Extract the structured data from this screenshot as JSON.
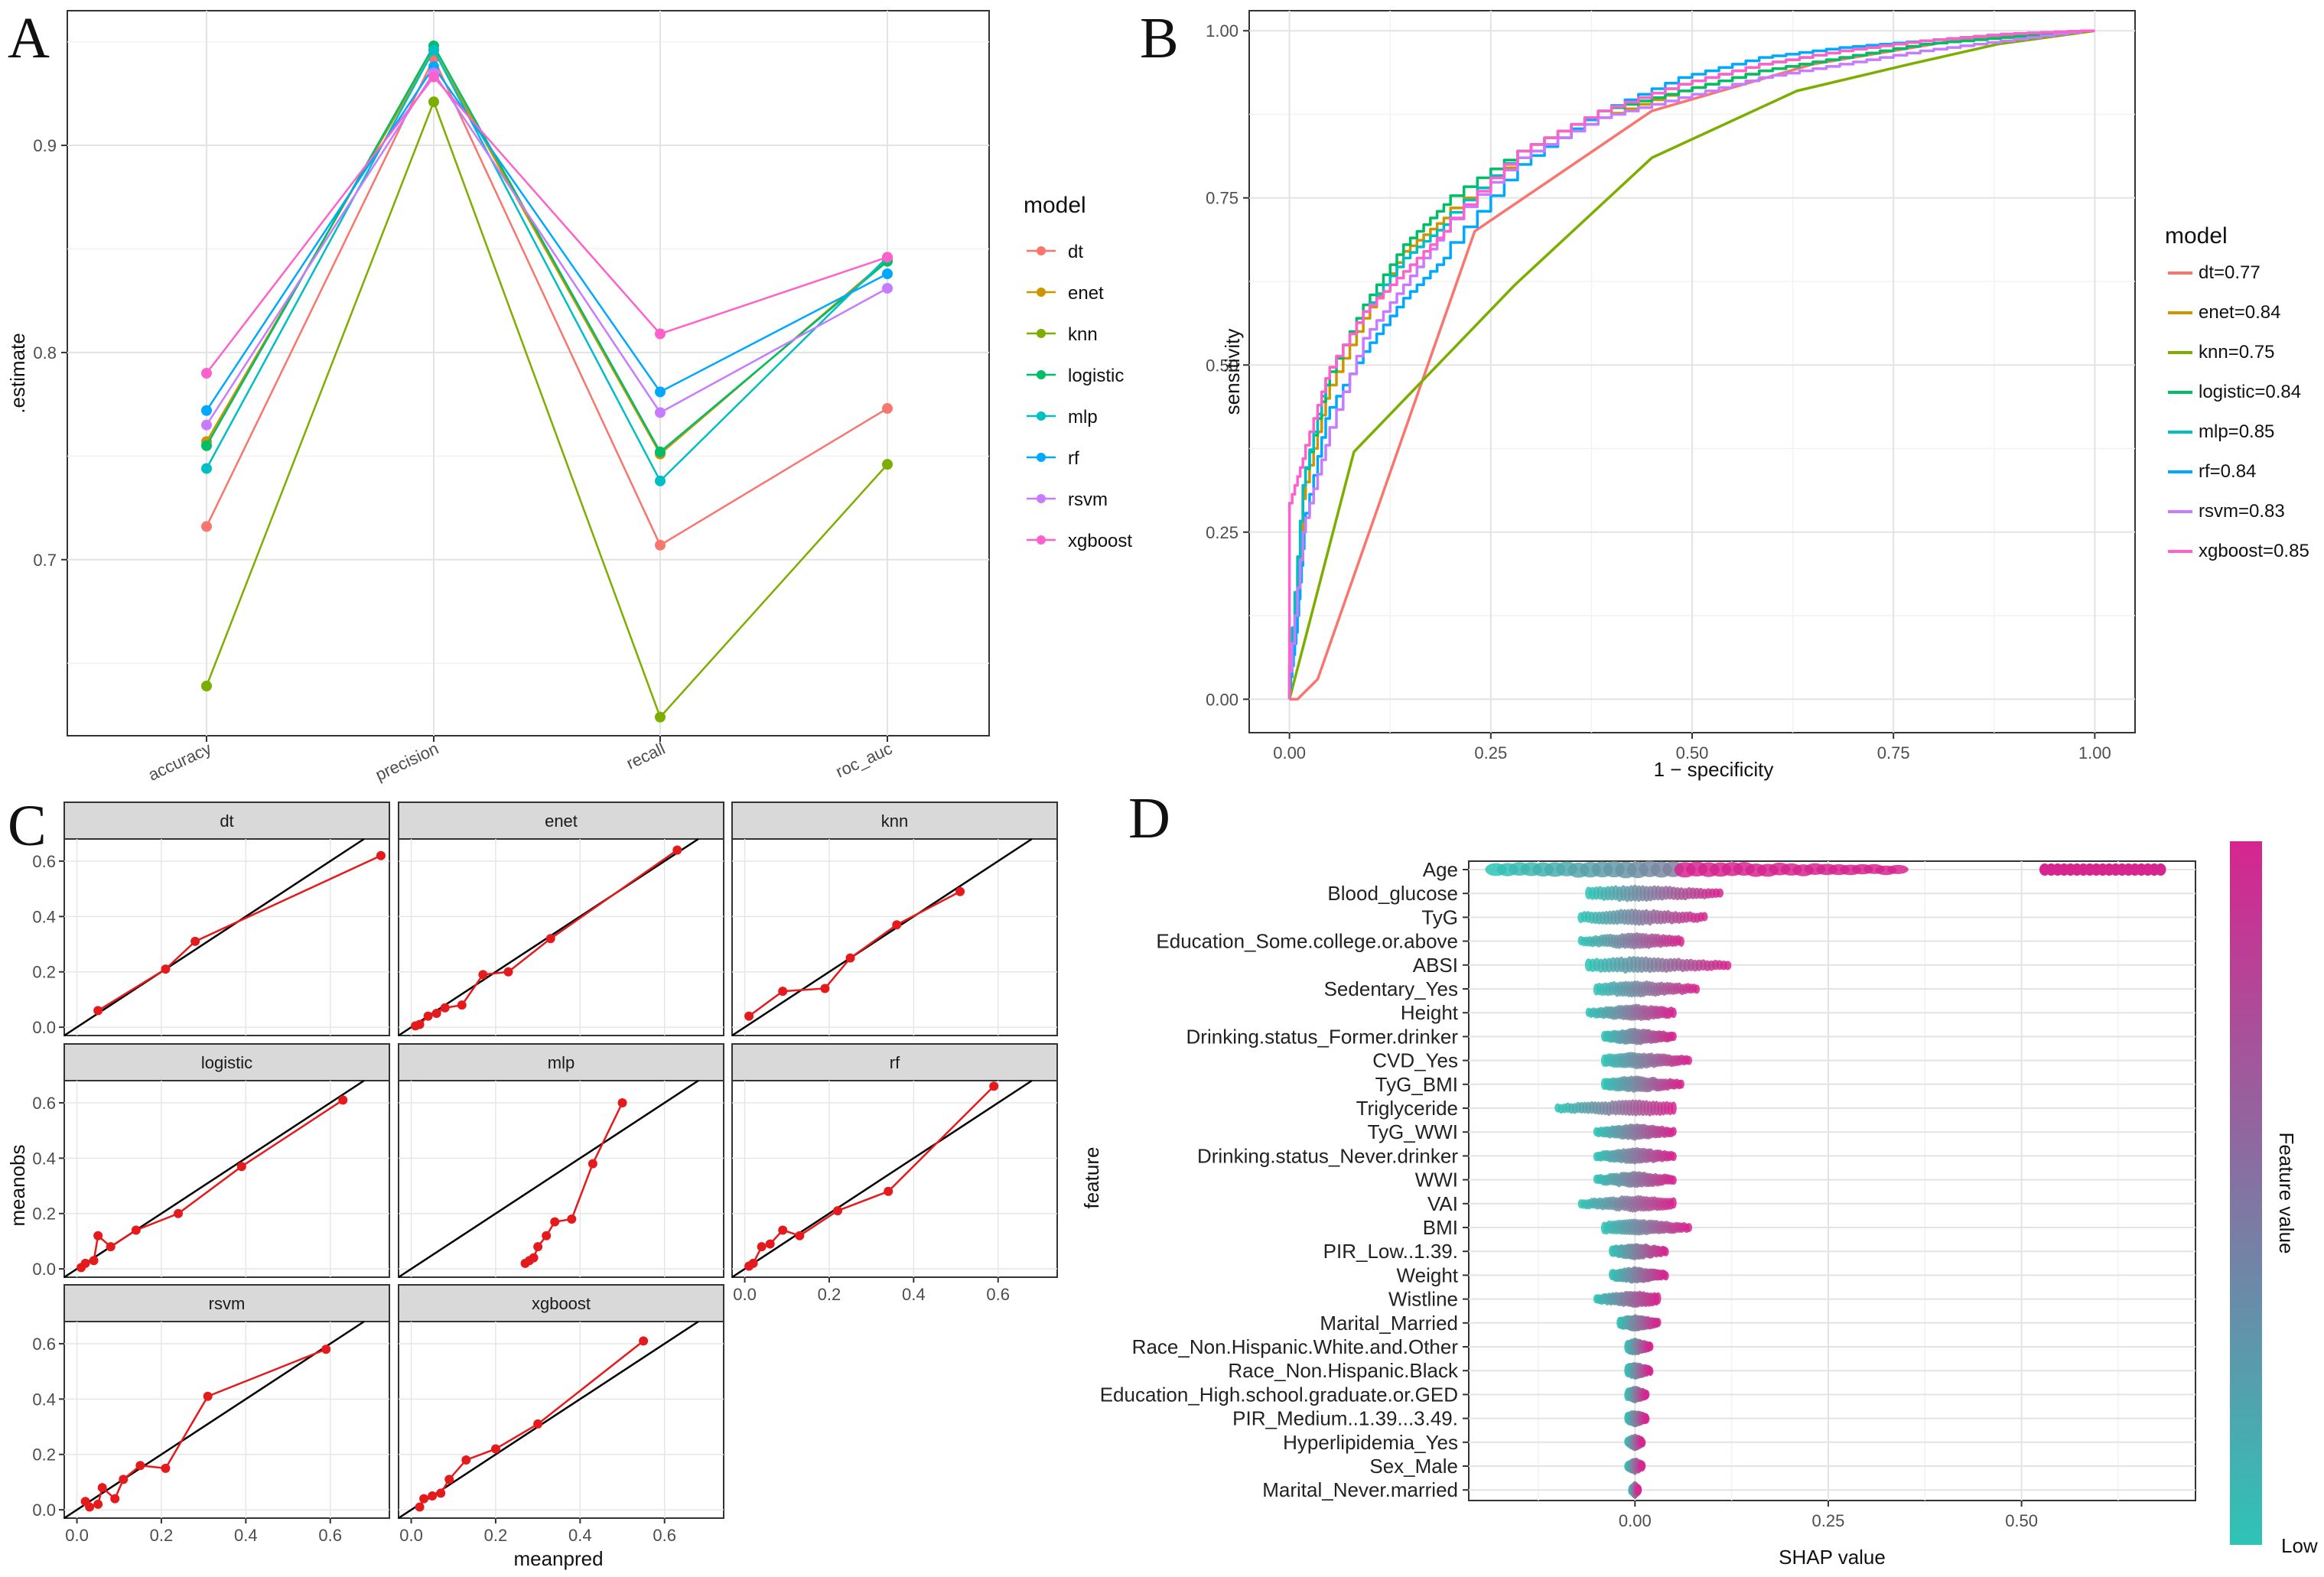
{
  "panel_labels": {
    "a": "A",
    "b": "B",
    "c": "C",
    "d": "D"
  },
  "chart_data": [
    {
      "type": "line",
      "panel": "A",
      "title": "",
      "xlabel": "",
      "ylabel": ".estimate",
      "categories": [
        "accuracy",
        "precision",
        "recall",
        "roc_auc"
      ],
      "y_ticks": [
        0.7,
        0.8,
        0.9
      ],
      "ylim": [
        0.615,
        0.965
      ],
      "legend_title": "model",
      "series": [
        {
          "name": "dt",
          "color": "#F8766D",
          "values": [
            0.716,
            0.942,
            0.707,
            0.773
          ]
        },
        {
          "name": "enet",
          "color": "#CD9600",
          "values": [
            0.757,
            0.946,
            0.751,
            0.845
          ]
        },
        {
          "name": "knn",
          "color": "#7CAE00",
          "values": [
            0.639,
            0.921,
            0.624,
            0.746
          ]
        },
        {
          "name": "logistic",
          "color": "#00BE67",
          "values": [
            0.755,
            0.948,
            0.752,
            0.844
          ]
        },
        {
          "name": "mlp",
          "color": "#00BFC4",
          "values": [
            0.744,
            0.946,
            0.738,
            0.846
          ]
        },
        {
          "name": "rf",
          "color": "#00A9FF",
          "values": [
            0.772,
            0.938,
            0.781,
            0.838
          ]
        },
        {
          "name": "rsvm",
          "color": "#C77CFF",
          "values": [
            0.765,
            0.935,
            0.771,
            0.831
          ]
        },
        {
          "name": "xgboost",
          "color": "#FF61CC",
          "values": [
            0.79,
            0.933,
            0.809,
            0.846
          ]
        }
      ]
    },
    {
      "type": "line",
      "panel": "B",
      "title": "",
      "xlabel": "1 − specificity",
      "ylabel": "sensitivity",
      "xlim": [
        -0.05,
        1.05
      ],
      "ylim": [
        -0.05,
        1.03
      ],
      "x_ticks": [
        "0.00",
        "0.25",
        "0.50",
        "0.75",
        "1.00"
      ],
      "y_ticks": [
        "0.00",
        "0.25",
        "0.50",
        "0.75",
        "1.00"
      ],
      "legend_title": "model",
      "series": [
        {
          "name": "dt=0.77",
          "color": "#F8766D",
          "x": [
            0,
            0.01,
            0.035,
            0.23,
            0.45,
            0.65,
            0.85,
            1.0
          ],
          "y": [
            0,
            0,
            0.03,
            0.7,
            0.88,
            0.95,
            0.99,
            1.0
          ]
        },
        {
          "name": "enet=0.84",
          "color": "#CD9600",
          "x": [
            0,
            0.02,
            0.05,
            0.1,
            0.15,
            0.2,
            0.3,
            0.4,
            0.5,
            0.6,
            0.7,
            0.8,
            0.9,
            1.0
          ],
          "y": [
            0,
            0.3,
            0.45,
            0.57,
            0.67,
            0.72,
            0.81,
            0.87,
            0.91,
            0.94,
            0.96,
            0.98,
            0.99,
            1.0
          ]
        },
        {
          "name": "knn=0.75",
          "color": "#7CAE00",
          "x": [
            0,
            0.08,
            0.28,
            0.45,
            0.63,
            0.77,
            0.88,
            1.0
          ],
          "y": [
            0,
            0.37,
            0.62,
            0.81,
            0.91,
            0.95,
            0.98,
            1.0
          ]
        },
        {
          "name": "logistic=0.84",
          "color": "#00BE67",
          "x": [
            0,
            0.02,
            0.05,
            0.1,
            0.15,
            0.2,
            0.3,
            0.4,
            0.5,
            0.6,
            0.7,
            0.8,
            0.9,
            1.0
          ],
          "y": [
            0,
            0.32,
            0.47,
            0.59,
            0.68,
            0.74,
            0.82,
            0.88,
            0.91,
            0.94,
            0.96,
            0.98,
            0.99,
            1.0
          ]
        },
        {
          "name": "mlp=0.85",
          "color": "#00BFC4",
          "x": [
            0,
            0.02,
            0.05,
            0.1,
            0.15,
            0.2,
            0.3,
            0.4,
            0.5,
            0.6,
            0.7,
            0.8,
            0.9,
            1.0
          ],
          "y": [
            0,
            0.32,
            0.48,
            0.58,
            0.66,
            0.71,
            0.82,
            0.88,
            0.92,
            0.95,
            0.97,
            0.985,
            0.995,
            1.0
          ]
        },
        {
          "name": "rf=0.84",
          "color": "#00A9FF",
          "x": [
            0,
            0.01,
            0.02,
            0.05,
            0.1,
            0.15,
            0.2,
            0.3,
            0.4,
            0.5,
            0.6,
            0.7,
            0.8,
            0.9,
            1.0
          ],
          "y": [
            0,
            0.1,
            0.25,
            0.42,
            0.52,
            0.6,
            0.66,
            0.8,
            0.88,
            0.93,
            0.96,
            0.975,
            0.985,
            0.995,
            1.0
          ]
        },
        {
          "name": "rsvm=0.83",
          "color": "#C77CFF",
          "x": [
            0,
            0.02,
            0.05,
            0.1,
            0.15,
            0.2,
            0.3,
            0.4,
            0.5,
            0.6,
            0.7,
            0.8,
            0.9,
            1.0
          ],
          "y": [
            0,
            0.25,
            0.38,
            0.54,
            0.62,
            0.7,
            0.81,
            0.87,
            0.9,
            0.93,
            0.95,
            0.97,
            0.985,
            1.0
          ]
        },
        {
          "name": "xgboost=0.85",
          "color": "#FF61CC",
          "x": [
            0,
            0,
            0.02,
            0.05,
            0.1,
            0.15,
            0.2,
            0.3,
            0.4,
            0.5,
            0.6,
            0.7,
            0.8,
            0.9,
            1.0
          ],
          "y": [
            0,
            0.28,
            0.36,
            0.48,
            0.58,
            0.64,
            0.7,
            0.82,
            0.88,
            0.92,
            0.95,
            0.97,
            0.985,
            0.995,
            1.0
          ]
        }
      ]
    },
    {
      "type": "scatter",
      "panel": "C",
      "title": "",
      "xlabel": "meanpred",
      "ylabel": "meanobs",
      "xlim": [
        -0.03,
        0.74
      ],
      "ylim": [
        -0.03,
        0.68
      ],
      "x_ticks": [
        "0.0",
        "0.2",
        "0.4",
        "0.6"
      ],
      "y_ticks": [
        "0.0",
        "0.2",
        "0.4",
        "0.6"
      ],
      "line_color": "#E41A1C",
      "reference_line": "y = x",
      "facets": [
        {
          "name": "dt",
          "x": [
            0.05,
            0.21,
            0.28,
            0.72
          ],
          "y": [
            0.06,
            0.21,
            0.31,
            0.62
          ]
        },
        {
          "name": "enet",
          "x": [
            0.01,
            0.02,
            0.04,
            0.06,
            0.08,
            0.12,
            0.17,
            0.23,
            0.33,
            0.63
          ],
          "y": [
            0.005,
            0.01,
            0.04,
            0.05,
            0.07,
            0.08,
            0.19,
            0.2,
            0.32,
            0.64
          ]
        },
        {
          "name": "knn",
          "x": [
            0.01,
            0.09,
            0.19,
            0.25,
            0.36,
            0.51
          ],
          "y": [
            0.04,
            0.13,
            0.14,
            0.25,
            0.37,
            0.49
          ]
        },
        {
          "name": "logistic",
          "x": [
            0.01,
            0.02,
            0.04,
            0.05,
            0.08,
            0.14,
            0.24,
            0.39,
            0.63
          ],
          "y": [
            0.005,
            0.02,
            0.03,
            0.12,
            0.08,
            0.14,
            0.2,
            0.37,
            0.61
          ]
        },
        {
          "name": "mlp",
          "x": [
            0.27,
            0.28,
            0.29,
            0.3,
            0.32,
            0.34,
            0.38,
            0.43,
            0.5
          ],
          "y": [
            0.02,
            0.03,
            0.04,
            0.08,
            0.12,
            0.17,
            0.18,
            0.38,
            0.6
          ]
        },
        {
          "name": "rf",
          "x": [
            0.01,
            0.02,
            0.04,
            0.06,
            0.09,
            0.13,
            0.22,
            0.34,
            0.59
          ],
          "y": [
            0.01,
            0.02,
            0.08,
            0.09,
            0.14,
            0.12,
            0.21,
            0.28,
            0.66
          ]
        },
        {
          "name": "rsvm",
          "x": [
            0.02,
            0.03,
            0.05,
            0.06,
            0.09,
            0.11,
            0.15,
            0.21,
            0.31,
            0.59
          ],
          "y": [
            0.03,
            0.01,
            0.02,
            0.08,
            0.04,
            0.11,
            0.16,
            0.15,
            0.41,
            0.58
          ]
        },
        {
          "name": "xgboost",
          "x": [
            0.02,
            0.03,
            0.05,
            0.07,
            0.09,
            0.13,
            0.2,
            0.3,
            0.55
          ],
          "y": [
            0.01,
            0.04,
            0.05,
            0.06,
            0.11,
            0.18,
            0.22,
            0.31,
            0.61
          ]
        }
      ]
    },
    {
      "type": "scatter",
      "panel": "D",
      "title": "",
      "xlabel": "SHAP value",
      "ylabel": "feature",
      "xlim": [
        -0.215,
        0.725
      ],
      "x_ticks": [
        "0.00",
        "0.25",
        "0.50"
      ],
      "x_tick_values": [
        0,
        0.25,
        0.5
      ],
      "colorbar_title": "Feature value",
      "colorbar_low": "Low",
      "colorbar_colors": [
        "#2EC4B6",
        "#D6258F"
      ],
      "features": [
        {
          "name": "Age",
          "min": -0.18,
          "max": 0.34,
          "outlier_min": 0.53,
          "outlier_max": 0.68
        },
        {
          "name": "Blood_glucose",
          "min": -0.06,
          "max": 0.11
        },
        {
          "name": "TyG",
          "min": -0.07,
          "max": 0.09
        },
        {
          "name": "Education_Some.college.or.above",
          "min": -0.07,
          "max": 0.06
        },
        {
          "name": "ABSI",
          "min": -0.06,
          "max": 0.12
        },
        {
          "name": "Sedentary_Yes",
          "min": -0.05,
          "max": 0.08
        },
        {
          "name": "Height",
          "min": -0.06,
          "max": 0.05
        },
        {
          "name": "Drinking.status_Former.drinker",
          "min": -0.04,
          "max": 0.05
        },
        {
          "name": "CVD_Yes",
          "min": -0.04,
          "max": 0.07
        },
        {
          "name": "TyG_BMI",
          "min": -0.04,
          "max": 0.06
        },
        {
          "name": "Triglyceride",
          "min": -0.1,
          "max": 0.05
        },
        {
          "name": "TyG_WWI",
          "min": -0.05,
          "max": 0.05
        },
        {
          "name": "Drinking.status_Never.drinker",
          "min": -0.05,
          "max": 0.05
        },
        {
          "name": "WWI",
          "min": -0.05,
          "max": 0.05
        },
        {
          "name": "VAI",
          "min": -0.07,
          "max": 0.05
        },
        {
          "name": "BMI",
          "min": -0.04,
          "max": 0.07
        },
        {
          "name": "PIR_Low..1.39.",
          "min": -0.03,
          "max": 0.04
        },
        {
          "name": "Weight",
          "min": -0.03,
          "max": 0.04
        },
        {
          "name": "Wistline",
          "min": -0.05,
          "max": 0.03
        },
        {
          "name": "Marital_Married",
          "min": -0.02,
          "max": 0.03
        },
        {
          "name": "Race_Non.Hispanic.White.and.Other",
          "min": -0.01,
          "max": 0.02
        },
        {
          "name": "Race_Non.Hispanic.Black",
          "min": -0.01,
          "max": 0.02
        },
        {
          "name": "Education_High.school.graduate.or.GED",
          "min": -0.01,
          "max": 0.015
        },
        {
          "name": "PIR_Medium..1.39...3.49.",
          "min": -0.01,
          "max": 0.015
        },
        {
          "name": "Hyperlipidemia_Yes",
          "min": -0.01,
          "max": 0.01
        },
        {
          "name": "Sex_Male",
          "min": -0.01,
          "max": 0.01
        },
        {
          "name": "Marital_Never.married",
          "min": -0.005,
          "max": 0.005
        }
      ]
    }
  ]
}
